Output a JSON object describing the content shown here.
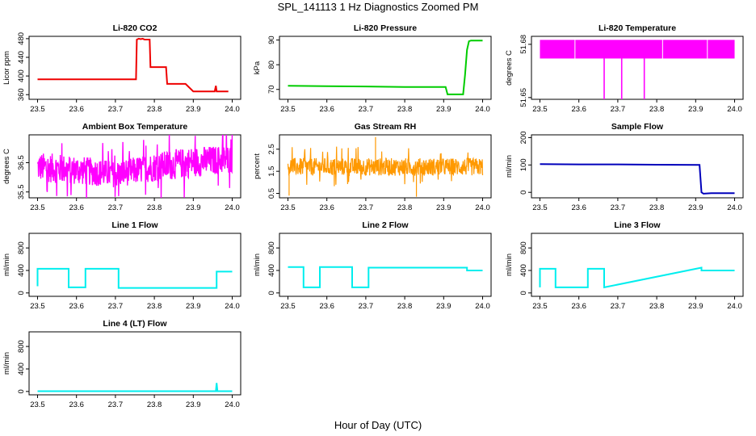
{
  "figure": {
    "title": "SPL_141113  1 Hz Diagnostics Zoomed PM",
    "xlabel": "Hour of Day (UTC)"
  },
  "chart_data": [
    {
      "id": "co2",
      "type": "line",
      "title": "Li-820 CO2",
      "ylabel": "Licor ppm",
      "color": "#ee0000",
      "xlim": [
        23.5,
        24.0
      ],
      "ylim": [
        350,
        485
      ],
      "xticks": [
        "23.5",
        "23.6",
        "23.7",
        "23.8",
        "23.9",
        "24.0"
      ],
      "yticks": [
        "360",
        "400",
        "440",
        "480"
      ],
      "series": [
        {
          "x": [
            23.5,
            23.753,
            23.755,
            23.76,
            23.765,
            23.77,
            23.775,
            23.78,
            23.785,
            23.788,
            23.79,
            23.8,
            23.81,
            23.83,
            23.833,
            23.87,
            23.88,
            23.9,
            23.93,
            23.952,
            23.955,
            23.958,
            23.96,
            23.97,
            23.99
          ],
          "y": [
            393,
            393,
            478,
            480,
            479,
            480,
            478,
            478,
            478,
            478,
            419,
            419,
            419,
            419,
            383,
            383,
            383,
            367,
            367,
            367,
            367,
            379,
            367,
            367,
            367
          ]
        }
      ]
    },
    {
      "id": "pressure",
      "type": "line",
      "title": "Li-820 Pressure",
      "ylabel": "kPa",
      "color": "#00cc00",
      "xlim": [
        23.5,
        24.0
      ],
      "ylim": [
        66,
        91.5
      ],
      "xticks": [
        "23.5",
        "23.6",
        "23.7",
        "23.8",
        "23.9",
        "24.0"
      ],
      "yticks": [
        "70",
        "80",
        "90"
      ],
      "series": [
        {
          "x": [
            23.5,
            23.6,
            23.7,
            23.8,
            23.905,
            23.91,
            23.95,
            23.955,
            23.96,
            23.965,
            23.97,
            24.0
          ],
          "y": [
            71.5,
            71.3,
            71.2,
            71.0,
            71.0,
            68.0,
            68.0,
            76,
            86,
            89.5,
            89.8,
            89.8
          ]
        }
      ]
    },
    {
      "id": "licor_temp",
      "type": "area",
      "title": "Li-820 Temperature",
      "ylabel": "degrees C",
      "color": "#ff00ff",
      "xlim": [
        23.5,
        24.0
      ],
      "ylim": [
        51.649,
        51.6845
      ],
      "xticks": [
        "23.5",
        "23.6",
        "23.7",
        "23.8",
        "23.9",
        "24.0"
      ],
      "yticks": [
        "51.65",
        "51.68"
      ],
      "band": {
        "x": [
          23.5,
          24.0
        ],
        "low": 51.672,
        "high": 51.6825
      },
      "series": [
        {
          "name": "dips",
          "x": [
            23.665,
            23.71,
            23.768
          ],
          "y": [
            51.649,
            51.649,
            51.649
          ]
        }
      ]
    },
    {
      "id": "ambient",
      "type": "area",
      "title": "Ambient Box Temperature",
      "ylabel": "degrees C",
      "color": "#ff00ff",
      "xlim": [
        23.5,
        24.0
      ],
      "ylim": [
        35.3,
        37.45
      ],
      "xticks": [
        "23.5",
        "23.6",
        "23.7",
        "23.8",
        "23.9",
        "24.0"
      ],
      "yticks": [
        "35.5",
        "36.5"
      ],
      "band": {
        "x": [
          23.5,
          23.6,
          23.7,
          23.8,
          23.9,
          24.0
        ],
        "low": [
          35.85,
          35.75,
          35.65,
          35.85,
          36.0,
          36.15
        ],
        "high": [
          36.85,
          36.75,
          36.55,
          36.85,
          37.05,
          37.1
        ]
      },
      "series": []
    },
    {
      "id": "rh",
      "type": "area",
      "title": "Gas Stream RH",
      "ylabel": "percent",
      "color": "#ff9900",
      "xlim": [
        23.5,
        24.0
      ],
      "ylim": [
        0.3,
        3.15
      ],
      "xticks": [
        "23.5",
        "23.6",
        "23.7",
        "23.8",
        "23.9",
        "24.0"
      ],
      "yticks": [
        "0.5",
        "1.5",
        "2.5"
      ],
      "band": {
        "x": [
          23.5,
          24.0
        ],
        "low": 1.3,
        "high": 2.1
      },
      "series": []
    },
    {
      "id": "sample",
      "type": "line",
      "title": "Sample Flow",
      "ylabel": "ml/min",
      "color": "#0000bb",
      "xlim": [
        23.5,
        24.0
      ],
      "ylim": [
        -20,
        210
      ],
      "xticks": [
        "23.5",
        "23.6",
        "23.7",
        "23.8",
        "23.9",
        "24.0"
      ],
      "yticks": [
        "0",
        "100",
        "200"
      ],
      "series": [
        {
          "x": [
            23.5,
            23.6,
            23.7,
            23.8,
            23.91,
            23.915,
            23.92,
            23.94,
            24.0
          ],
          "y": [
            103,
            102,
            102,
            101,
            100,
            0,
            -5,
            -3,
            -3
          ]
        }
      ]
    },
    {
      "id": "line1",
      "type": "line",
      "title": "Line 1 Flow",
      "ylabel": "ml/min",
      "color": "#00eeee",
      "xlim": [
        23.5,
        24.0
      ],
      "ylim": [
        -60,
        1060
      ],
      "xticks": [
        "23.5",
        "23.6",
        "23.7",
        "23.8",
        "23.9",
        "24.0"
      ],
      "yticks": [
        "0",
        "400",
        "800"
      ],
      "series": [
        {
          "x": [
            23.5,
            23.5,
            23.58,
            23.58,
            23.623,
            23.623,
            23.708,
            23.708,
            23.96,
            23.96,
            24.0
          ],
          "y": [
            120,
            430,
            430,
            100,
            100,
            430,
            430,
            90,
            90,
            380,
            380
          ]
        }
      ]
    },
    {
      "id": "line2",
      "type": "line",
      "title": "Line 2 Flow",
      "ylabel": "ml/min",
      "color": "#00eeee",
      "xlim": [
        23.5,
        24.0
      ],
      "ylim": [
        -60,
        1060
      ],
      "xticks": [
        "23.5",
        "23.6",
        "23.7",
        "23.8",
        "23.9",
        "24.0"
      ],
      "yticks": [
        "0",
        "400",
        "800"
      ],
      "series": [
        {
          "x": [
            23.5,
            23.54,
            23.54,
            23.582,
            23.582,
            23.665,
            23.665,
            23.707,
            23.707,
            23.96,
            23.96,
            24.0
          ],
          "y": [
            460,
            460,
            100,
            100,
            460,
            460,
            100,
            100,
            450,
            450,
            400,
            400
          ]
        }
      ]
    },
    {
      "id": "line3",
      "type": "line",
      "title": "Line 3 Flow",
      "ylabel": "ml/min",
      "color": "#00eeee",
      "xlim": [
        23.5,
        24.0
      ],
      "ylim": [
        -60,
        1060
      ],
      "xticks": [
        "23.5",
        "23.6",
        "23.7",
        "23.8",
        "23.9",
        "24.0"
      ],
      "yticks": [
        "0",
        "400",
        "800"
      ],
      "series": [
        {
          "x": [
            23.5,
            23.5,
            23.54,
            23.54,
            23.623,
            23.623,
            23.665,
            23.665,
            23.915,
            23.915,
            24.0
          ],
          "y": [
            100,
            430,
            430,
            100,
            100,
            430,
            430,
            100,
            450,
            400,
            400
          ]
        }
      ]
    },
    {
      "id": "line4",
      "type": "line",
      "title": "Line 4 (LT) Flow",
      "ylabel": "ml/min",
      "color": "#00eeee",
      "xlim": [
        23.5,
        24.0
      ],
      "ylim": [
        -60,
        1060
      ],
      "xticks": [
        "23.5",
        "23.6",
        "23.7",
        "23.8",
        "23.9",
        "24.0"
      ],
      "yticks": [
        "0",
        "400",
        "800"
      ],
      "series": [
        {
          "x": [
            23.5,
            23.958,
            23.96,
            23.962,
            24.0
          ],
          "y": [
            5,
            5,
            150,
            5,
            5
          ]
        }
      ]
    }
  ]
}
